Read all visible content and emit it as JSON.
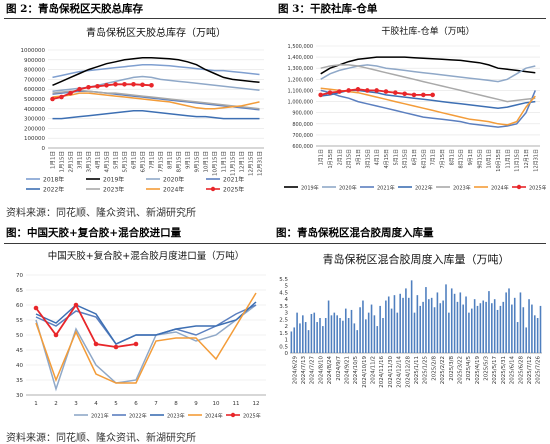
{
  "headers": {
    "fig2": "图 2：青岛保税区天胶总库存",
    "fig3": "图 3：干胶社库-仓单",
    "fig_bl": "图：中国天胶+复合胶+混合胶进口量",
    "fig_br": "图：青岛保税区混合胶周度入库量"
  },
  "sources": {
    "top": "资料来源：同花顺、隆众资讯、新湖研究所",
    "bottom": "资料来源：同花顺、隆众资讯、新湖研究所"
  },
  "colors": {
    "y2018": "#7f9fd0",
    "y2019": "#000000",
    "y2020": "#8fa8c8",
    "y2021": "#5b7fbf",
    "y2022": "#3d6fb3",
    "y2023": "#a9a9a9",
    "y2024": "#f39c39",
    "y2025": "#e8262a",
    "bar": "#4f7fbf",
    "grid": "#e3e3e3"
  },
  "chart_data": [
    {
      "type": "line",
      "title": "青岛保税区天胶总库存（万吨）",
      "x": [
        "1月1日",
        "1月15日",
        "2月15日",
        "3月1日",
        "3月15日",
        "4月1日",
        "4月15日",
        "5月1日",
        "5月15日",
        "6月1日",
        "6月15日",
        "7月1日",
        "7月15日",
        "8月1日",
        "8月15日",
        "9月1日",
        "9月15日",
        "10月1日",
        "10月15日",
        "11月1日",
        "11月15日",
        "12月1日",
        "12月15日",
        "12月31日"
      ],
      "ylim": [
        0,
        1000000
      ],
      "yticks": [
        "0",
        "100000",
        "200000",
        "300000",
        "400000",
        "500000",
        "600000",
        "700000",
        "800000",
        "900000",
        "1000000"
      ],
      "legend": "bottom",
      "series": [
        {
          "name": "2018年",
          "color_key": "y2018",
          "values": [
            720000,
            740000,
            760000,
            780000,
            790000,
            800000,
            810000,
            820000,
            830000,
            840000,
            850000,
            850000,
            845000,
            840000,
            830000,
            820000,
            810000,
            800000,
            790000,
            790000,
            780000,
            770000,
            760000,
            750000
          ]
        },
        {
          "name": "2019年",
          "color_key": "y2019",
          "values": [
            640000,
            680000,
            720000,
            760000,
            800000,
            830000,
            860000,
            880000,
            900000,
            910000,
            920000,
            920000,
            915000,
            910000,
            900000,
            880000,
            850000,
            800000,
            760000,
            720000,
            700000,
            690000,
            680000,
            670000
          ]
        },
        {
          "name": "2020年",
          "color_key": "y2020",
          "values": [
            580000,
            590000,
            600000,
            610000,
            620000,
            640000,
            660000,
            680000,
            700000,
            720000,
            730000,
            720000,
            700000,
            690000,
            680000,
            670000,
            660000,
            650000,
            640000,
            630000,
            620000,
            610000,
            600000,
            590000
          ]
        },
        {
          "name": "2021年",
          "color_key": "y2021",
          "values": [
            550000,
            560000,
            570000,
            580000,
            580000,
            570000,
            560000,
            550000,
            540000,
            530000,
            520000,
            510000,
            500000,
            490000,
            480000,
            470000,
            460000,
            450000,
            440000,
            430000,
            420000,
            410000,
            400000,
            390000
          ]
        },
        {
          "name": "2022年",
          "color_key": "y2022",
          "values": [
            300000,
            300000,
            310000,
            320000,
            330000,
            340000,
            350000,
            360000,
            370000,
            380000,
            380000,
            370000,
            360000,
            350000,
            340000,
            330000,
            320000,
            320000,
            310000,
            300000,
            300000,
            300000,
            300000,
            300000
          ]
        },
        {
          "name": "2023年",
          "color_key": "y2023",
          "values": [
            560000,
            570000,
            580000,
            590000,
            580000,
            570000,
            560000,
            560000,
            550000,
            540000,
            530000,
            520000,
            510000,
            500000,
            490000,
            480000,
            470000,
            460000,
            450000,
            440000,
            430000,
            420000,
            410000,
            400000
          ]
        },
        {
          "name": "2024年",
          "color_key": "y2024",
          "values": [
            520000,
            530000,
            540000,
            560000,
            560000,
            550000,
            540000,
            530000,
            520000,
            510000,
            500000,
            490000,
            480000,
            470000,
            450000,
            430000,
            410000,
            400000,
            400000,
            410000,
            420000,
            430000,
            450000,
            470000
          ]
        },
        {
          "name": "2025年",
          "color_key": "y2025",
          "values": [
            500000,
            520000,
            560000,
            600000,
            620000,
            630000,
            640000,
            650000,
            650000,
            650000,
            645000,
            640000,
            null,
            null,
            null,
            null,
            null,
            null,
            null,
            null,
            null,
            null,
            null,
            null
          ]
        }
      ]
    },
    {
      "type": "line",
      "title": "干胶社库-仓单（万吨）",
      "x": [
        "1月1日",
        "1月15日",
        "2月1日",
        "2月15日",
        "3月1日",
        "3月15日",
        "4月1日",
        "4月15日",
        "5月1日",
        "5月15日",
        "6月1日",
        "6月15日",
        "7月1日",
        "7月15日",
        "8月1日",
        "8月15日",
        "9月1日",
        "9月15日",
        "10月1日",
        "10月15日",
        "11月1日",
        "11月15日",
        "12月1日",
        "12月31日"
      ],
      "ylim": [
        600000,
        1500000
      ],
      "yticks": [
        "600,000",
        "700,000",
        "800,000",
        "900,000",
        "1,000,000",
        "1,100,000",
        "1,200,000",
        "1,300,000",
        "1,400,000",
        "1,500,000"
      ],
      "legend": "bottom",
      "series": [
        {
          "name": "2019年",
          "color_key": "y2019",
          "values": [
            1250000,
            1300000,
            1330000,
            1360000,
            1380000,
            1390000,
            1400000,
            1400000,
            1400000,
            1400000,
            1395000,
            1390000,
            1385000,
            1380000,
            1375000,
            1370000,
            1360000,
            1350000,
            1330000,
            1300000,
            1290000,
            1280000,
            1270000,
            1260000
          ]
        },
        {
          "name": "2020年",
          "color_key": "y2020",
          "values": [
            1200000,
            1250000,
            1280000,
            1300000,
            1320000,
            1330000,
            1320000,
            1300000,
            1290000,
            1280000,
            1270000,
            1260000,
            1250000,
            1240000,
            1230000,
            1220000,
            1210000,
            1200000,
            1190000,
            1180000,
            1200000,
            1250000,
            1300000,
            1320000
          ]
        },
        {
          "name": "2021年",
          "color_key": "y2021",
          "values": [
            1100000,
            1080000,
            1050000,
            1030000,
            1000000,
            980000,
            960000,
            940000,
            920000,
            900000,
            880000,
            860000,
            850000,
            840000,
            830000,
            820000,
            800000,
            790000,
            780000,
            770000,
            780000,
            800000,
            900000,
            1100000
          ]
        },
        {
          "name": "2022年",
          "color_key": "y2022",
          "values": [
            1050000,
            1060000,
            1080000,
            1100000,
            1100000,
            1090000,
            1080000,
            1060000,
            1050000,
            1040000,
            1030000,
            1020000,
            1010000,
            1000000,
            990000,
            980000,
            970000,
            960000,
            950000,
            940000,
            950000,
            970000,
            990000,
            1000000
          ]
        },
        {
          "name": "2023年",
          "color_key": "y2023",
          "values": [
            1300000,
            1320000,
            1330000,
            1330000,
            1320000,
            1300000,
            1280000,
            1260000,
            1240000,
            1220000,
            1200000,
            1180000,
            1160000,
            1140000,
            1120000,
            1100000,
            1080000,
            1060000,
            1040000,
            1020000,
            1000000,
            1010000,
            1020000,
            1030000
          ]
        },
        {
          "name": "2024年",
          "color_key": "y2024",
          "values": [
            1120000,
            1110000,
            1100000,
            1090000,
            1080000,
            1060000,
            1040000,
            1020000,
            1000000,
            980000,
            960000,
            940000,
            920000,
            900000,
            880000,
            860000,
            840000,
            830000,
            820000,
            800000,
            790000,
            820000,
            950000,
            1050000
          ]
        },
        {
          "name": "2025年",
          "color_key": "y2025",
          "values": [
            1060000,
            1080000,
            1090000,
            1100000,
            1110000,
            1100000,
            1100000,
            1090000,
            1080000,
            1070000,
            1060000,
            1060000,
            1060000,
            null,
            null,
            null,
            null,
            null,
            null,
            null,
            null,
            null,
            null,
            null
          ]
        }
      ]
    },
    {
      "type": "line",
      "title": "中国天胶+复合胶+混合胶月度进口量（万吨）",
      "x": [
        "1",
        "2",
        "3",
        "4",
        "5",
        "6",
        "7",
        "8",
        "9",
        "10",
        "11",
        "12"
      ],
      "ylim": [
        30,
        70
      ],
      "yticks": [
        "30",
        "35",
        "40",
        "45",
        "50",
        "55",
        "60",
        "65",
        "70"
      ],
      "legend": "bottom",
      "series": [
        {
          "name": "2021年",
          "color_key": "y2020",
          "values": [
            55,
            32,
            52,
            40,
            34,
            35,
            50,
            51,
            48,
            50,
            55,
            60
          ]
        },
        {
          "name": "2022年",
          "color_key": "y2021",
          "values": [
            56,
            53,
            58,
            56,
            47,
            50,
            50,
            52,
            50,
            53,
            57,
            60
          ]
        },
        {
          "name": "2023年",
          "color_key": "y2022",
          "values": [
            57,
            54,
            60,
            57,
            47,
            50,
            50,
            52,
            53,
            53,
            55,
            61
          ]
        },
        {
          "name": "2024年",
          "color_key": "y2024",
          "values": [
            54,
            35,
            51,
            37,
            34,
            34,
            48,
            49,
            49,
            42,
            53,
            64
          ]
        },
        {
          "name": "2025年",
          "color_key": "y2025",
          "values": [
            59,
            50,
            60,
            47,
            46,
            47,
            null,
            null,
            null,
            null,
            null,
            null
          ]
        }
      ]
    },
    {
      "type": "bar",
      "title": "青岛保税区混合胶周度入库量（万吨）",
      "ylim": [
        0,
        5.5
      ],
      "yticks": [
        "0",
        "0.5",
        "1",
        "1.5",
        "2",
        "2.5",
        "3",
        "3.5",
        "4",
        "4.5",
        "5",
        "5.5"
      ],
      "xtick_labels": [
        "2024/6/29",
        "2024/7/13",
        "2024/7/27",
        "2024/8/10",
        "2024/8/24",
        "2024/9/7",
        "2024/9/21",
        "2024/10/5",
        "2024/10/19",
        "2024/11/2",
        "2024/11/16",
        "2024/11/30",
        "2024/12/14",
        "2024/12/28",
        "2025/1/11",
        "2025/1/25",
        "2025/2/8",
        "2025/2/22",
        "2025/3/8",
        "2025/3/22",
        "2025/4/5",
        "2025/4/19",
        "2025/5/3",
        "2025/5/17",
        "2025/5/31",
        "2025/6/14",
        "2025/6/28",
        "2025/7/12",
        "2025/7/26"
      ],
      "values": [
        1.6,
        1.9,
        3.0,
        2.2,
        2.8,
        2.3,
        1.7,
        2.9,
        3.0,
        2.3,
        2.6,
        2.0,
        2.6,
        3.9,
        2.8,
        3.0,
        2.8,
        2.6,
        2.4,
        3.3,
        2.6,
        3.2,
        2.2,
        1.7,
        3.4,
        3.9,
        2.5,
        3.0,
        3.6,
        2.8,
        2.0,
        3.5,
        2.6,
        3.9,
        4.2,
        3.3,
        4.3,
        3.0,
        4.4,
        4.1,
        4.8,
        4.1,
        5.4,
        3.0,
        4.3,
        3.5,
        3.8,
        4.9,
        4.0,
        4.1,
        3.4,
        4.5,
        3.7,
        3.9,
        5.1,
        3.0,
        4.8,
        4.4,
        3.8,
        4.5,
        3.6,
        4.2,
        3.0,
        3.3,
        4.0,
        3.5,
        3.7,
        3.9,
        3.8,
        4.6,
        3.7,
        4.0,
        3.2,
        3.5,
        3.8,
        4.5,
        4.8,
        3.6,
        4.1,
        2.3,
        4.5,
        3.4,
        1.9,
        4.0,
        3.6,
        2.8,
        2.6,
        3.5
      ]
    }
  ]
}
